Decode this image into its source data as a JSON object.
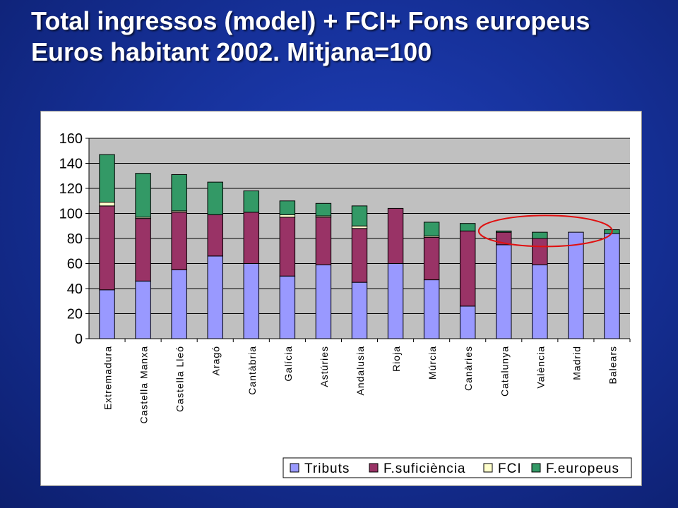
{
  "slide": {
    "title_line1": "Total ingressos (model) + FCI+ Fons europeus",
    "title_line2": "Euros habitant 2002. Mitjana=100"
  },
  "chart_data": {
    "type": "bar",
    "stacked": true,
    "categories": [
      "Extremadura",
      "Castella Manxa",
      "Castella Lleó",
      "Aragó",
      "Cantàbria",
      "Galícia",
      "Astúries",
      "Andalusia",
      "Rioja",
      "Múrcia",
      "Canàries",
      "Catalunya",
      "València",
      "Madrid",
      "Balears"
    ],
    "series": [
      {
        "name": "Tributs",
        "color": "#9999ff",
        "values": [
          39,
          46,
          55,
          66,
          60,
          50,
          59,
          45,
          60,
          47,
          26,
          75,
          59,
          85,
          84
        ]
      },
      {
        "name": "F.suficiència",
        "color": "#993366",
        "values": [
          67,
          50,
          46,
          33,
          41,
          47,
          38,
          43,
          44,
          34,
          60,
          10,
          21,
          0,
          0
        ]
      },
      {
        "name": "FCI",
        "color": "#ffffcc",
        "values": [
          3,
          1,
          1,
          0,
          0,
          2,
          1,
          2,
          0,
          1,
          0,
          0,
          0,
          0,
          0
        ]
      },
      {
        "name": "F.europeus",
        "color": "#339966",
        "values": [
          38,
          35,
          29,
          26,
          17,
          11,
          10,
          16,
          0,
          11,
          6,
          1,
          5,
          0,
          3
        ]
      }
    ],
    "ylim": [
      0,
      160
    ],
    "yticks": [
      0,
      20,
      40,
      60,
      80,
      100,
      120,
      140,
      160
    ],
    "ytick_labels": [
      "0",
      "20",
      "40",
      "60",
      "80",
      "100",
      "120",
      "140",
      "160"
    ],
    "grid": true,
    "plot_background": "#c0c0c0",
    "legend": "bottom",
    "xlabel": "",
    "ylabel": "",
    "annotation": {
      "shape": "ellipse",
      "color": "#e01010",
      "highlights": [
        "Catalunya",
        "València",
        "Madrid"
      ]
    }
  }
}
